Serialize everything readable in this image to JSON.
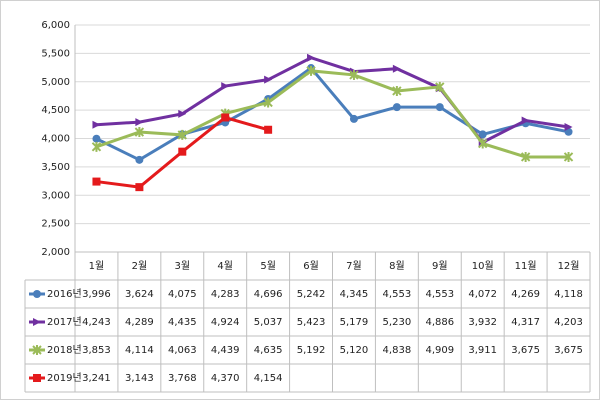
{
  "chart_data": {
    "type": "line",
    "categories": [
      "1월",
      "2월",
      "3월",
      "4월",
      "5월",
      "6월",
      "7월",
      "8월",
      "9월",
      "10월",
      "11월",
      "12월"
    ],
    "ylim": [
      2000,
      6000
    ],
    "yticks": [
      {
        "value": 2000,
        "label": "2,000"
      },
      {
        "value": 2500,
        "label": "2,500"
      },
      {
        "value": 3000,
        "label": "3,000"
      },
      {
        "value": 3500,
        "label": "3,500"
      },
      {
        "value": 4000,
        "label": "4,000"
      },
      {
        "value": 4500,
        "label": "4,500"
      },
      {
        "value": 5000,
        "label": "5,000"
      },
      {
        "value": 5500,
        "label": "5,500"
      },
      {
        "value": 6000,
        "label": "6,000"
      }
    ],
    "grid": true,
    "series": [
      {
        "name": "2016년",
        "color": "#4a7ebb",
        "marker": "circle",
        "values": [
          3996,
          3624,
          4075,
          4283,
          4696,
          5242,
          4345,
          4553,
          4553,
          4072,
          4269,
          4118
        ],
        "value_labels": [
          "3,996",
          "3,624",
          "4,075",
          "4,283",
          "4,696",
          "5,242",
          "4,345",
          "4,553",
          "4,553",
          "4,072",
          "4,269",
          "4,118"
        ]
      },
      {
        "name": "2017년",
        "color": "#7030a0",
        "marker": "triangle",
        "values": [
          4243,
          4289,
          4435,
          4924,
          5037,
          5423,
          5179,
          5230,
          4886,
          3932,
          4317,
          4203
        ],
        "value_labels": [
          "4,243",
          "4,289",
          "4,435",
          "4,924",
          "5,037",
          "5,423",
          "5,179",
          "5,230",
          "4,886",
          "3,932",
          "4,317",
          "4,203"
        ]
      },
      {
        "name": "2018년",
        "color": "#9bbb59",
        "marker": "x",
        "values": [
          3853,
          4114,
          4063,
          4439,
          4635,
          5192,
          5120,
          4838,
          4909,
          3911,
          3675,
          3675
        ],
        "value_labels": [
          "3,853",
          "4,114",
          "4,063",
          "4,439",
          "4,635",
          "5,192",
          "5,120",
          "4,838",
          "4,909",
          "3,911",
          "3,675",
          "3,675"
        ]
      },
      {
        "name": "2019년",
        "color": "#e41a1c",
        "marker": "square",
        "values": [
          3241,
          3143,
          3768,
          4370,
          4154,
          null,
          null,
          null,
          null,
          null,
          null,
          null
        ],
        "value_labels": [
          "3,241",
          "3,143",
          "3,768",
          "4,370",
          "4,154",
          null,
          null,
          null,
          null,
          null,
          null,
          null
        ]
      }
    ]
  }
}
